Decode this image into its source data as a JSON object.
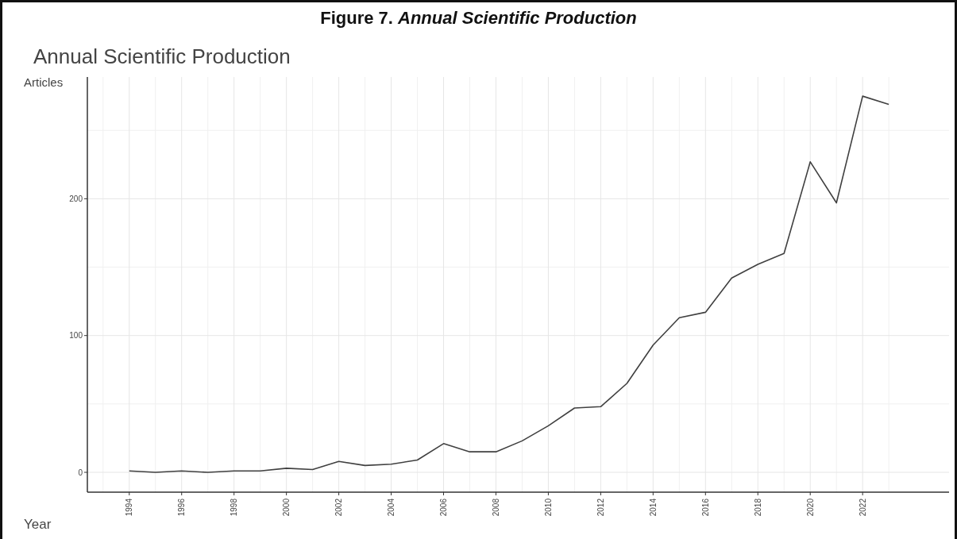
{
  "chart_data": {
    "type": "line",
    "title": "Figure 7. Annual Scientific Production",
    "subtitle": "Annual Scientific Production",
    "xlabel": "Year",
    "ylabel": "Articles",
    "x": [
      1994,
      1995,
      1996,
      1997,
      1998,
      1999,
      2000,
      2001,
      2002,
      2003,
      2004,
      2005,
      2006,
      2007,
      2008,
      2009,
      2010,
      2011,
      2012,
      2013,
      2014,
      2015,
      2016,
      2017,
      2018,
      2019,
      2020,
      2021,
      2022,
      2023
    ],
    "series": [
      {
        "color": "#404040",
        "values": [
          1,
          0,
          1,
          0,
          1,
          1,
          3,
          2,
          8,
          5,
          6,
          9,
          21,
          15,
          15,
          23,
          34,
          47,
          48,
          65,
          93,
          113,
          117,
          142,
          152,
          160,
          227,
          197,
          275,
          269
        ]
      }
    ],
    "xlim": [
      1992.4,
      2025.3
    ],
    "xticks": [
      1994,
      1996,
      1998,
      2000,
      2002,
      2004,
      2006,
      2008,
      2010,
      2012,
      2014,
      2016,
      2018,
      2020,
      2022
    ],
    "ylim": [
      -14.5,
      289
    ],
    "yticks": [
      0,
      100,
      200
    ],
    "grid": true,
    "marker": "none",
    "line_style": "solid"
  }
}
